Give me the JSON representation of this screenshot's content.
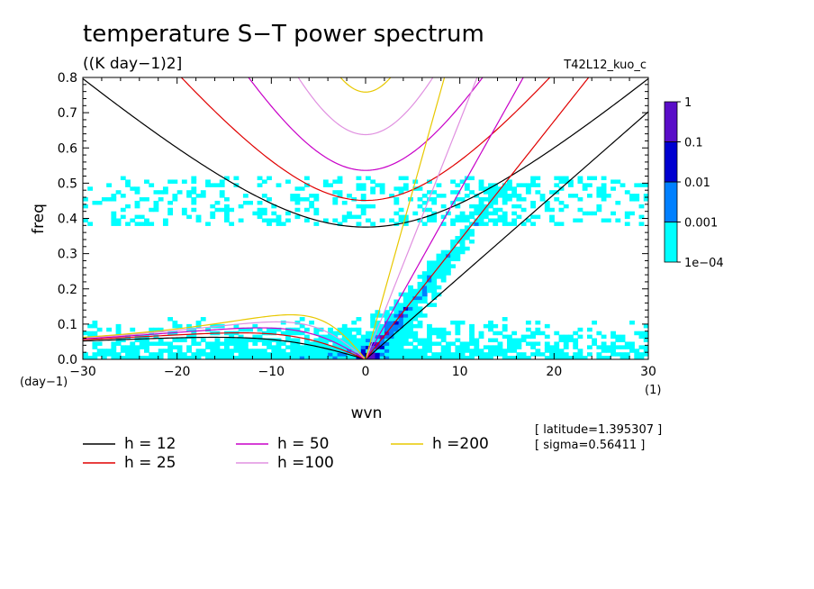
{
  "chart_data": {
    "type": "heatmap",
    "title": "temperature S−T power spectrum",
    "subtitle": "((K day−1)2]",
    "run_label": "T42L12_kuo_c",
    "xlabel": "wvn",
    "ylabel": "freq",
    "x_unit": "(1)",
    "y_unit": "(day−1)",
    "xlim": [
      -30,
      30
    ],
    "ylim": [
      0,
      0.8
    ],
    "x_ticks": [
      -30,
      -20,
      -10,
      0,
      10,
      20,
      30
    ],
    "x_tick_labels": [
      "−30",
      "−20",
      "−10",
      "0",
      "10",
      "20",
      "30"
    ],
    "y_ticks": [
      0.0,
      0.1,
      0.2,
      0.3,
      0.4,
      0.5,
      0.6,
      0.7,
      0.8
    ],
    "y_tick_labels": [
      "0.0",
      "0.1",
      "0.2",
      "0.3",
      "0.4",
      "0.5",
      "0.6",
      "0.7",
      "0.8"
    ],
    "colorbar": {
      "levels": [
        "1e−04",
        "0.001",
        "0.01",
        "0.1",
        "1"
      ],
      "level_values": [
        0.0001,
        0.001,
        0.01,
        0.1,
        1
      ],
      "colors": [
        "#00ffff",
        "#0080ff",
        "#0000d0",
        "#5a0dc8"
      ]
    },
    "dispersion_curves": [
      {
        "label": "h = 12",
        "h": 12,
        "color": "#000000"
      },
      {
        "label": "h = 25",
        "h": 25,
        "color": "#e00000"
      },
      {
        "label": "h = 50",
        "h": 50,
        "color": "#c800c8"
      },
      {
        "label": "h =100",
        "h": 100,
        "color": "#e090e0"
      },
      {
        "label": "h =200",
        "h": 200,
        "color": "#e8c800"
      }
    ],
    "annotations": [
      "[ latitude=1.395307 ]",
      "[ sigma=0.56411 ]"
    ]
  }
}
